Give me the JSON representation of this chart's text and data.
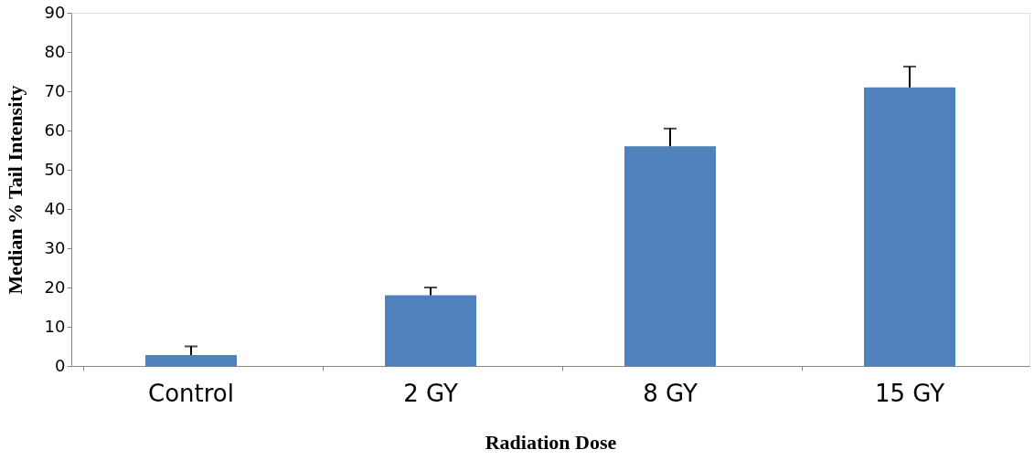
{
  "chart_data": {
    "type": "bar",
    "xlabel": "Radiation Dose",
    "ylabel": "Median % Tail Intensity",
    "categories": [
      "Control",
      "2 GY",
      "8 GY",
      "15 GY"
    ],
    "values": [
      2.8,
      18,
      56,
      71
    ],
    "errors": [
      [
        2.8,
        5
      ],
      [
        18,
        20
      ],
      [
        56,
        60.5
      ],
      [
        71,
        76.3
      ]
    ],
    "color": "#4f81bd",
    "ylim": [
      0,
      90
    ],
    "yticks": [
      0,
      10,
      20,
      30,
      40,
      50,
      60,
      70,
      80,
      90
    ],
    "grid": false
  }
}
